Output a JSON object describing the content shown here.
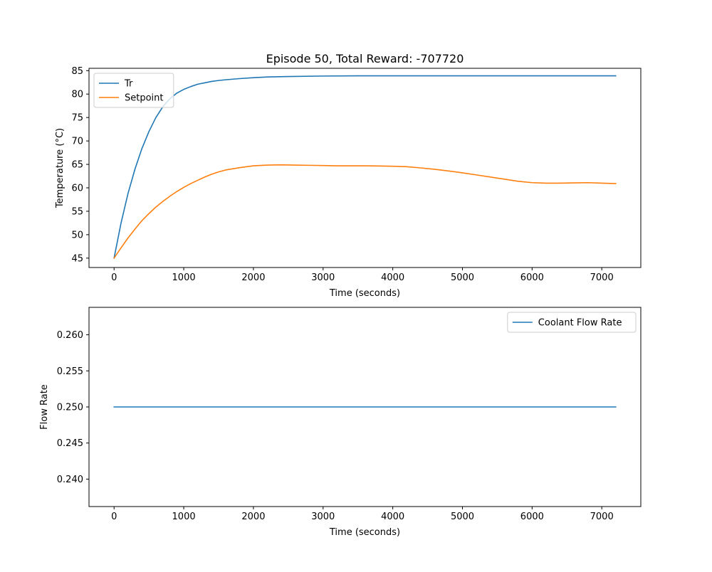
{
  "chart_data": [
    {
      "type": "line",
      "title": "Episode 50, Total Reward: -707720",
      "xlabel": "Time (seconds)",
      "ylabel": "Temperature (°C)",
      "xlim": [
        -360,
        7560
      ],
      "ylim": [
        43,
        85.5
      ],
      "xticks": [
        0,
        1000,
        2000,
        3000,
        4000,
        5000,
        6000,
        7000
      ],
      "yticks": [
        45,
        50,
        55,
        60,
        65,
        70,
        75,
        80,
        85
      ],
      "legend_position": "upper left",
      "grid": false,
      "series": [
        {
          "name": "Tr",
          "color": "#1f77b4",
          "x": [
            0,
            100,
            200,
            300,
            400,
            500,
            600,
            700,
            800,
            900,
            1000,
            1100,
            1200,
            1300,
            1400,
            1500,
            1600,
            1800,
            2000,
            2200,
            2500,
            3000,
            3500,
            4000,
            5000,
            6000,
            7200
          ],
          "y": [
            45.0,
            52.5,
            58.8,
            64.0,
            68.4,
            72.0,
            75.0,
            77.3,
            79.0,
            80.2,
            81.0,
            81.6,
            82.1,
            82.4,
            82.7,
            82.9,
            83.05,
            83.3,
            83.5,
            83.65,
            83.75,
            83.85,
            83.9,
            83.9,
            83.9,
            83.9,
            83.9
          ]
        },
        {
          "name": "Setpoint",
          "color": "#ff7f0e",
          "x": [
            0,
            100,
            200,
            300,
            400,
            500,
            600,
            700,
            800,
            900,
            1000,
            1100,
            1200,
            1300,
            1400,
            1500,
            1600,
            1800,
            2000,
            2200,
            2400,
            2600,
            2800,
            3000,
            3200,
            3400,
            3600,
            3800,
            4000,
            4200,
            4400,
            4600,
            4800,
            5000,
            5200,
            5400,
            5600,
            5800,
            6000,
            6200,
            6400,
            6600,
            6800,
            7000,
            7200
          ],
          "y": [
            45.0,
            47.2,
            49.3,
            51.2,
            53.0,
            54.5,
            55.9,
            57.1,
            58.2,
            59.2,
            60.1,
            60.9,
            61.6,
            62.3,
            62.9,
            63.4,
            63.8,
            64.3,
            64.7,
            64.85,
            64.9,
            64.85,
            64.8,
            64.75,
            64.7,
            64.7,
            64.7,
            64.65,
            64.6,
            64.5,
            64.25,
            63.95,
            63.6,
            63.2,
            62.75,
            62.3,
            61.85,
            61.4,
            61.1,
            61.0,
            61.0,
            61.05,
            61.1,
            61.0,
            60.9
          ]
        }
      ]
    },
    {
      "type": "line",
      "title": "",
      "xlabel": "Time (seconds)",
      "ylabel": "Flow Rate",
      "xlim": [
        -360,
        7560
      ],
      "ylim": [
        0.2362,
        0.2638
      ],
      "xticks": [
        0,
        1000,
        2000,
        3000,
        4000,
        5000,
        6000,
        7000
      ],
      "yticks": [
        0.24,
        0.245,
        0.25,
        0.255,
        0.26
      ],
      "ytick_labels": [
        "0.240",
        "0.245",
        "0.250",
        "0.255",
        "0.260"
      ],
      "legend_position": "upper right",
      "grid": false,
      "series": [
        {
          "name": "Coolant Flow Rate",
          "color": "#1f77b4",
          "x": [
            0,
            7200
          ],
          "y": [
            0.25,
            0.25
          ]
        }
      ]
    }
  ]
}
